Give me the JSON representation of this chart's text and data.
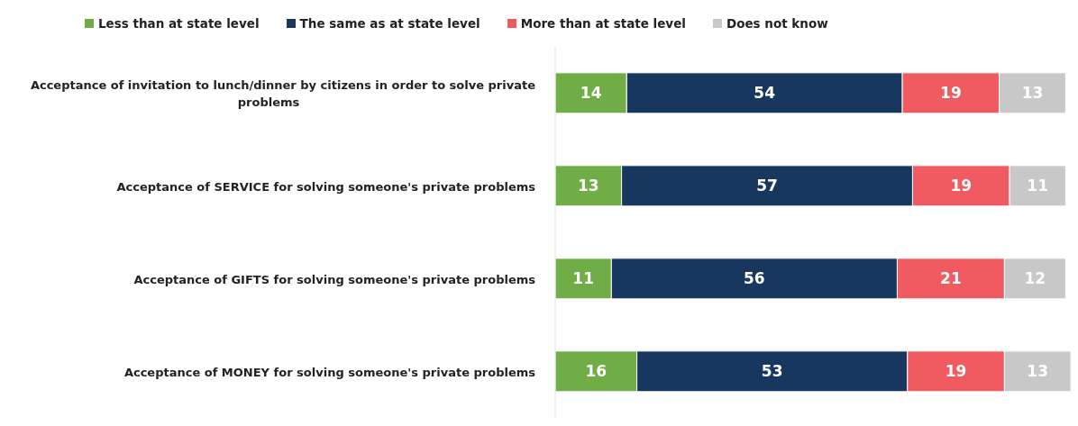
{
  "chart_data": {
    "type": "bar",
    "orientation": "horizontal",
    "stacked": true,
    "data_labels": true,
    "legend": "top",
    "categories": [
      "Acceptance of invitation to lunch/dinner by citizens in order to solve private problems",
      "Acceptance of SERVICE for solving someone's private problems",
      "Acceptance of GIFTS for solving someone's private problems",
      "Acceptance of MONEY for solving someone's private problems"
    ],
    "series": [
      {
        "name": "Less than at state level",
        "color": "#70ad47",
        "values": [
          14,
          13,
          11,
          16
        ]
      },
      {
        "name": "The same as at state level",
        "color": "#17375e",
        "values": [
          54,
          57,
          56,
          53
        ]
      },
      {
        "name": "More than at state level",
        "color": "#f05a61",
        "values": [
          19,
          19,
          21,
          19
        ]
      },
      {
        "name": "Does not know",
        "color": "#c8c8c8",
        "values": [
          13,
          11,
          12,
          13
        ]
      }
    ]
  }
}
